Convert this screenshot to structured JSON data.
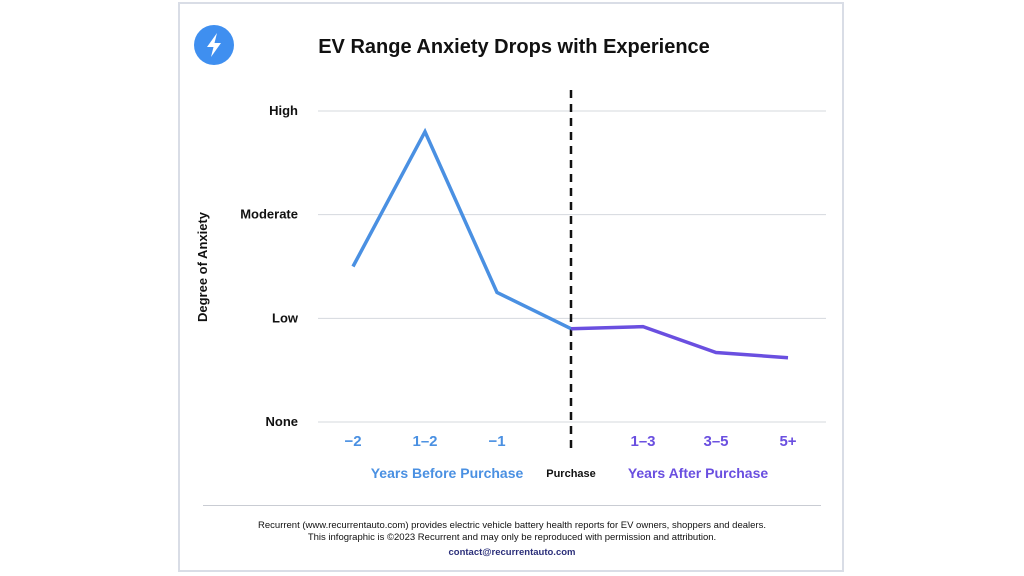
{
  "title": "EV Range Anxiety Drops with Experience",
  "logo": {
    "icon": "lightning-bolt-icon",
    "color": "#3f8ff0"
  },
  "footer": {
    "line1": "Recurrent (www.recurrentauto.com) provides electric vehicle battery health reports for EV owners, shoppers and dealers.",
    "line2": "This infographic is ©2023 Recurrent and may only be reproduced with permission and attribution.",
    "contact": "contact@recurrentauto.com"
  },
  "chart_data": {
    "type": "line",
    "title": "EV Range Anxiety Drops with Experience",
    "ylabel": "Degree of Anxiety",
    "yticks": [
      {
        "label": "None",
        "value": 0
      },
      {
        "label": "Low",
        "value": 1
      },
      {
        "label": "Moderate",
        "value": 2
      },
      {
        "label": "High",
        "value": 3
      }
    ],
    "ylim": [
      0,
      3
    ],
    "grid": true,
    "marker_label": "Purchase",
    "x": [
      "−2",
      "1–2",
      "−1",
      "Purchase",
      "1–3",
      "3–5",
      "5+"
    ],
    "x_groups": [
      {
        "label": "Years Before Purchase",
        "color": "#4a90e2"
      },
      {
        "label": "Years After Purchase",
        "color": "#6a4fe0"
      }
    ],
    "series": [
      {
        "segment": "before",
        "color": "#4a90e2",
        "points": [
          {
            "x": "−2",
            "y": 1.5
          },
          {
            "x": "1–2",
            "y": 2.8
          },
          {
            "x": "−1",
            "y": 1.25
          },
          {
            "x": "Purchase",
            "y": 0.9
          }
        ]
      },
      {
        "segment": "after",
        "color": "#6a4fe0",
        "points": [
          {
            "x": "Purchase",
            "y": 0.9
          },
          {
            "x": "1–3",
            "y": 0.92
          },
          {
            "x": "3–5",
            "y": 0.67
          },
          {
            "x": "5+",
            "y": 0.62
          }
        ]
      }
    ]
  }
}
